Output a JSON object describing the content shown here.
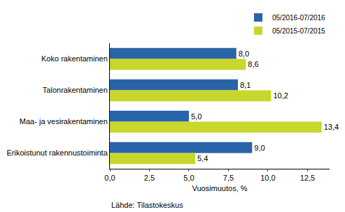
{
  "chart_data": {
    "type": "bar",
    "orientation": "horizontal",
    "categories": [
      "Koko rakentaminen",
      "Talonrakentaminen",
      "Maa- ja vesirakentaminen",
      "Erikoistunut rakennustoiminta"
    ],
    "series": [
      {
        "name": "05/2016-07/2016",
        "color": "#2a64a8",
        "values": [
          8.0,
          8.1,
          5.0,
          9.0
        ],
        "value_labels": [
          "8,0",
          "8,1",
          "5,0",
          "9,0"
        ]
      },
      {
        "name": "05/2015-07/2015",
        "color": "#c8d72c",
        "values": [
          8.6,
          10.2,
          13.4,
          5.4
        ],
        "value_labels": [
          "8,6",
          "10,2",
          "13,4",
          "5,4"
        ]
      }
    ],
    "x_label": "Vuosimuutos, %",
    "xlim": [
      0,
      13.9
    ],
    "xticks": [
      {
        "value": 0,
        "label": "0,0"
      },
      {
        "value": 2.5,
        "label": "2,5"
      },
      {
        "value": 5,
        "label": "5,0"
      },
      {
        "value": 7.5,
        "label": "7,5"
      },
      {
        "value": 10,
        "label": "10,0"
      },
      {
        "value": 12.5,
        "label": "12,5"
      }
    ],
    "data_labels": true,
    "grid": false,
    "legend": "top-right",
    "source": "Lähde: Tilastokeskus"
  }
}
